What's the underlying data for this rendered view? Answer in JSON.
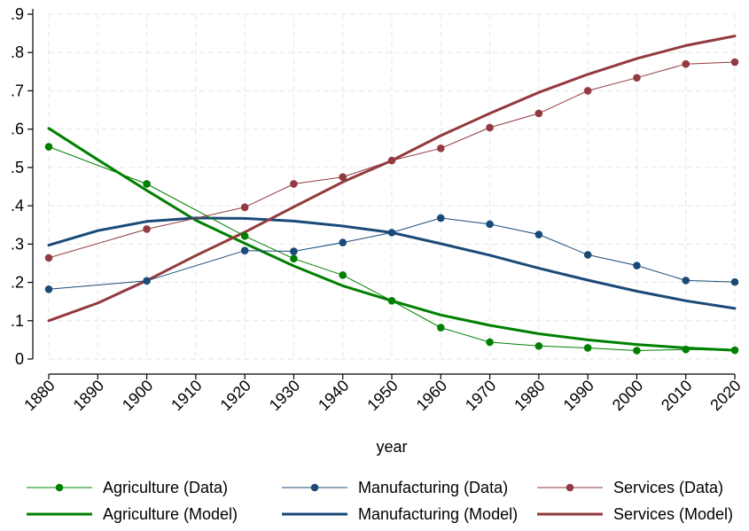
{
  "chart_data": {
    "type": "line",
    "title": "",
    "xlabel": "year",
    "ylabel": "",
    "xlim": [
      1880,
      2020
    ],
    "ylim": [
      0,
      0.9
    ],
    "x_ticks": [
      1880,
      1890,
      1900,
      1910,
      1920,
      1930,
      1940,
      1950,
      1960,
      1970,
      1980,
      1990,
      2000,
      2010,
      2020
    ],
    "y_ticks": [
      0,
      0.1,
      0.2,
      0.3,
      0.4,
      0.5,
      0.6,
      0.7,
      0.8,
      0.9
    ],
    "y_tick_labels": [
      "0",
      ".1",
      ".2",
      ".3",
      ".4",
      ".5",
      ".6",
      ".7",
      ".8",
      ".9"
    ],
    "grid": true,
    "legend_position": "bottom",
    "series": [
      {
        "name": "Agriculture (Data)",
        "style": "data",
        "color": "#008000",
        "x": [
          1880,
          1900,
          1920,
          1930,
          1940,
          1950,
          1960,
          1970,
          1980,
          1990,
          2000,
          2010,
          2020
        ],
        "y": [
          0.554,
          0.457,
          0.321,
          0.262,
          0.219,
          0.152,
          0.082,
          0.044,
          0.034,
          0.029,
          0.022,
          0.025,
          0.023
        ]
      },
      {
        "name": "Manufacturing (Data)",
        "style": "data",
        "color": "#1a4a78",
        "x": [
          1880,
          1900,
          1920,
          1930,
          1940,
          1950,
          1960,
          1970,
          1980,
          1990,
          2000,
          2010,
          2020
        ],
        "y": [
          0.182,
          0.204,
          0.283,
          0.281,
          0.304,
          0.33,
          0.368,
          0.352,
          0.325,
          0.272,
          0.244,
          0.205,
          0.201
        ]
      },
      {
        "name": "Services (Data)",
        "style": "data",
        "color": "#923a3f",
        "x": [
          1880,
          1900,
          1920,
          1930,
          1940,
          1950,
          1960,
          1970,
          1980,
          1990,
          2000,
          2010,
          2020
        ],
        "y": [
          0.264,
          0.339,
          0.396,
          0.457,
          0.475,
          0.518,
          0.55,
          0.604,
          0.641,
          0.7,
          0.734,
          0.77,
          0.775
        ]
      },
      {
        "name": "Agriculture (Model)",
        "style": "model",
        "color": "#008000",
        "x": [
          1880,
          1890,
          1900,
          1910,
          1920,
          1930,
          1940,
          1950,
          1960,
          1970,
          1980,
          1990,
          2000,
          2010,
          2020
        ],
        "y": [
          0.602,
          0.52,
          0.44,
          0.362,
          0.302,
          0.243,
          0.191,
          0.152,
          0.115,
          0.088,
          0.066,
          0.05,
          0.038,
          0.029,
          0.023
        ]
      },
      {
        "name": "Manufacturing (Model)",
        "style": "model",
        "color": "#1a4a78",
        "x": [
          1880,
          1890,
          1900,
          1910,
          1920,
          1930,
          1940,
          1950,
          1960,
          1970,
          1980,
          1990,
          2000,
          2010,
          2020
        ],
        "y": [
          0.297,
          0.335,
          0.359,
          0.368,
          0.367,
          0.36,
          0.347,
          0.33,
          0.301,
          0.271,
          0.237,
          0.206,
          0.177,
          0.152,
          0.132
        ]
      },
      {
        "name": "Services (Model)",
        "style": "model",
        "color": "#923a3f",
        "x": [
          1880,
          1890,
          1900,
          1910,
          1920,
          1930,
          1940,
          1950,
          1960,
          1970,
          1980,
          1990,
          2000,
          2010,
          2020
        ],
        "y": [
          0.1,
          0.146,
          0.205,
          0.27,
          0.331,
          0.397,
          0.462,
          0.518,
          0.583,
          0.641,
          0.696,
          0.743,
          0.784,
          0.818,
          0.843
        ]
      }
    ]
  }
}
